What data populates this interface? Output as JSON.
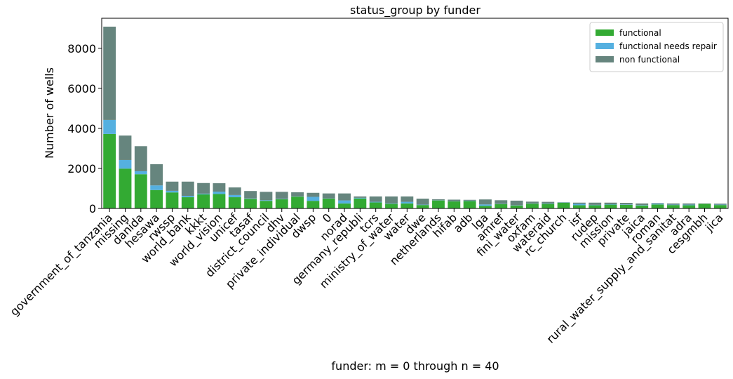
{
  "chart_data": {
    "type": "bar",
    "stacked": true,
    "title": "status_group by funder",
    "xlabel": "funder: m = 0 through n = 40",
    "ylabel": "Number of wells",
    "ylim": [
      0,
      9500
    ],
    "yticks": [
      0,
      2000,
      4000,
      6000,
      8000
    ],
    "grid": false,
    "legend_position": "top-right",
    "categories": [
      "government_of_tanzania",
      "missing",
      "danida",
      "hesawa",
      "rwssp",
      "world_bank",
      "kkkt",
      "world_vision",
      "unicef",
      "tasaf",
      "district_council",
      "dhv",
      "private_individual",
      "dwsp",
      "0",
      "norad",
      "germany_republi",
      "tcrs",
      "ministry_of_water",
      "water",
      "dwe",
      "netherlands",
      "hifab",
      "adb",
      "lga",
      "amref",
      "fini_water",
      "oxfam",
      "wateraid",
      "rc_church",
      "isf",
      "rudep",
      "mission",
      "private",
      "jaica",
      "roman",
      "rural_water_supply_and_sanitat",
      "adra",
      "cesgmbh",
      "jica"
    ],
    "series": [
      {
        "name": "functional",
        "color": "#33aa33",
        "values": [
          3720,
          1990,
          1710,
          920,
          800,
          560,
          700,
          720,
          560,
          480,
          380,
          460,
          590,
          380,
          490,
          250,
          500,
          300,
          230,
          250,
          170,
          400,
          350,
          370,
          130,
          220,
          150,
          240,
          230,
          290,
          160,
          160,
          190,
          180,
          150,
          200,
          170,
          160,
          230,
          170
        ]
      },
      {
        "name": "functional needs repair",
        "color": "#55b0e0",
        "values": [
          700,
          430,
          150,
          230,
          80,
          70,
          40,
          120,
          110,
          20,
          30,
          20,
          10,
          200,
          10,
          150,
          30,
          30,
          20,
          80,
          20,
          10,
          10,
          20,
          70,
          10,
          10,
          10,
          20,
          10,
          70,
          20,
          20,
          20,
          20,
          40,
          20,
          30,
          0,
          20
        ]
      },
      {
        "name": "non functional",
        "color": "#66857e",
        "values": [
          4660,
          1220,
          1250,
          1060,
          460,
          710,
          530,
          420,
          380,
          370,
          420,
          350,
          210,
          200,
          250,
          350,
          70,
          270,
          350,
          270,
          300,
          50,
          80,
          40,
          250,
          180,
          230,
          90,
          80,
          10,
          60,
          110,
          80,
          80,
          80,
          30,
          60,
          60,
          20,
          50
        ]
      }
    ]
  }
}
